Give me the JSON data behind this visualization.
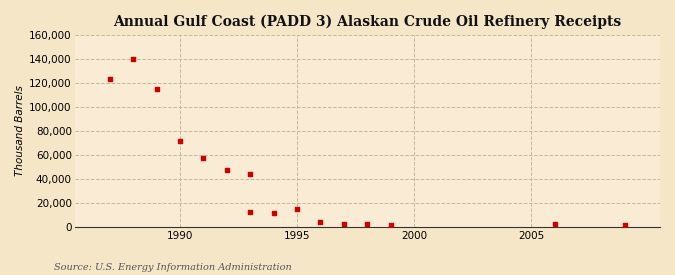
{
  "title": "Annual Gulf Coast (PADD 3) Alaskan Crude Oil Refinery Receipts",
  "ylabel": "Thousand Barrels",
  "source": "Source: U.S. Energy Information Administration",
  "background_color": "#f5e6c8",
  "plot_bg_color": "#faecd4",
  "marker_color": "#cc0000",
  "xlim": [
    1985.5,
    2010.5
  ],
  "ylim": [
    0,
    160000
  ],
  "yticks": [
    0,
    20000,
    40000,
    60000,
    80000,
    100000,
    120000,
    140000,
    160000
  ],
  "xticks": [
    1990,
    1995,
    2000,
    2005
  ],
  "years": [
    1987,
    1988,
    1989,
    1990,
    1991,
    1992,
    1993,
    1993,
    1994,
    1995,
    1996,
    1997,
    1998,
    1999,
    2006,
    2009
  ],
  "values": [
    123000,
    140000,
    115000,
    71000,
    57000,
    47000,
    44000,
    12000,
    11000,
    15000,
    4000,
    2500,
    2000,
    1500,
    2000,
    1200
  ]
}
